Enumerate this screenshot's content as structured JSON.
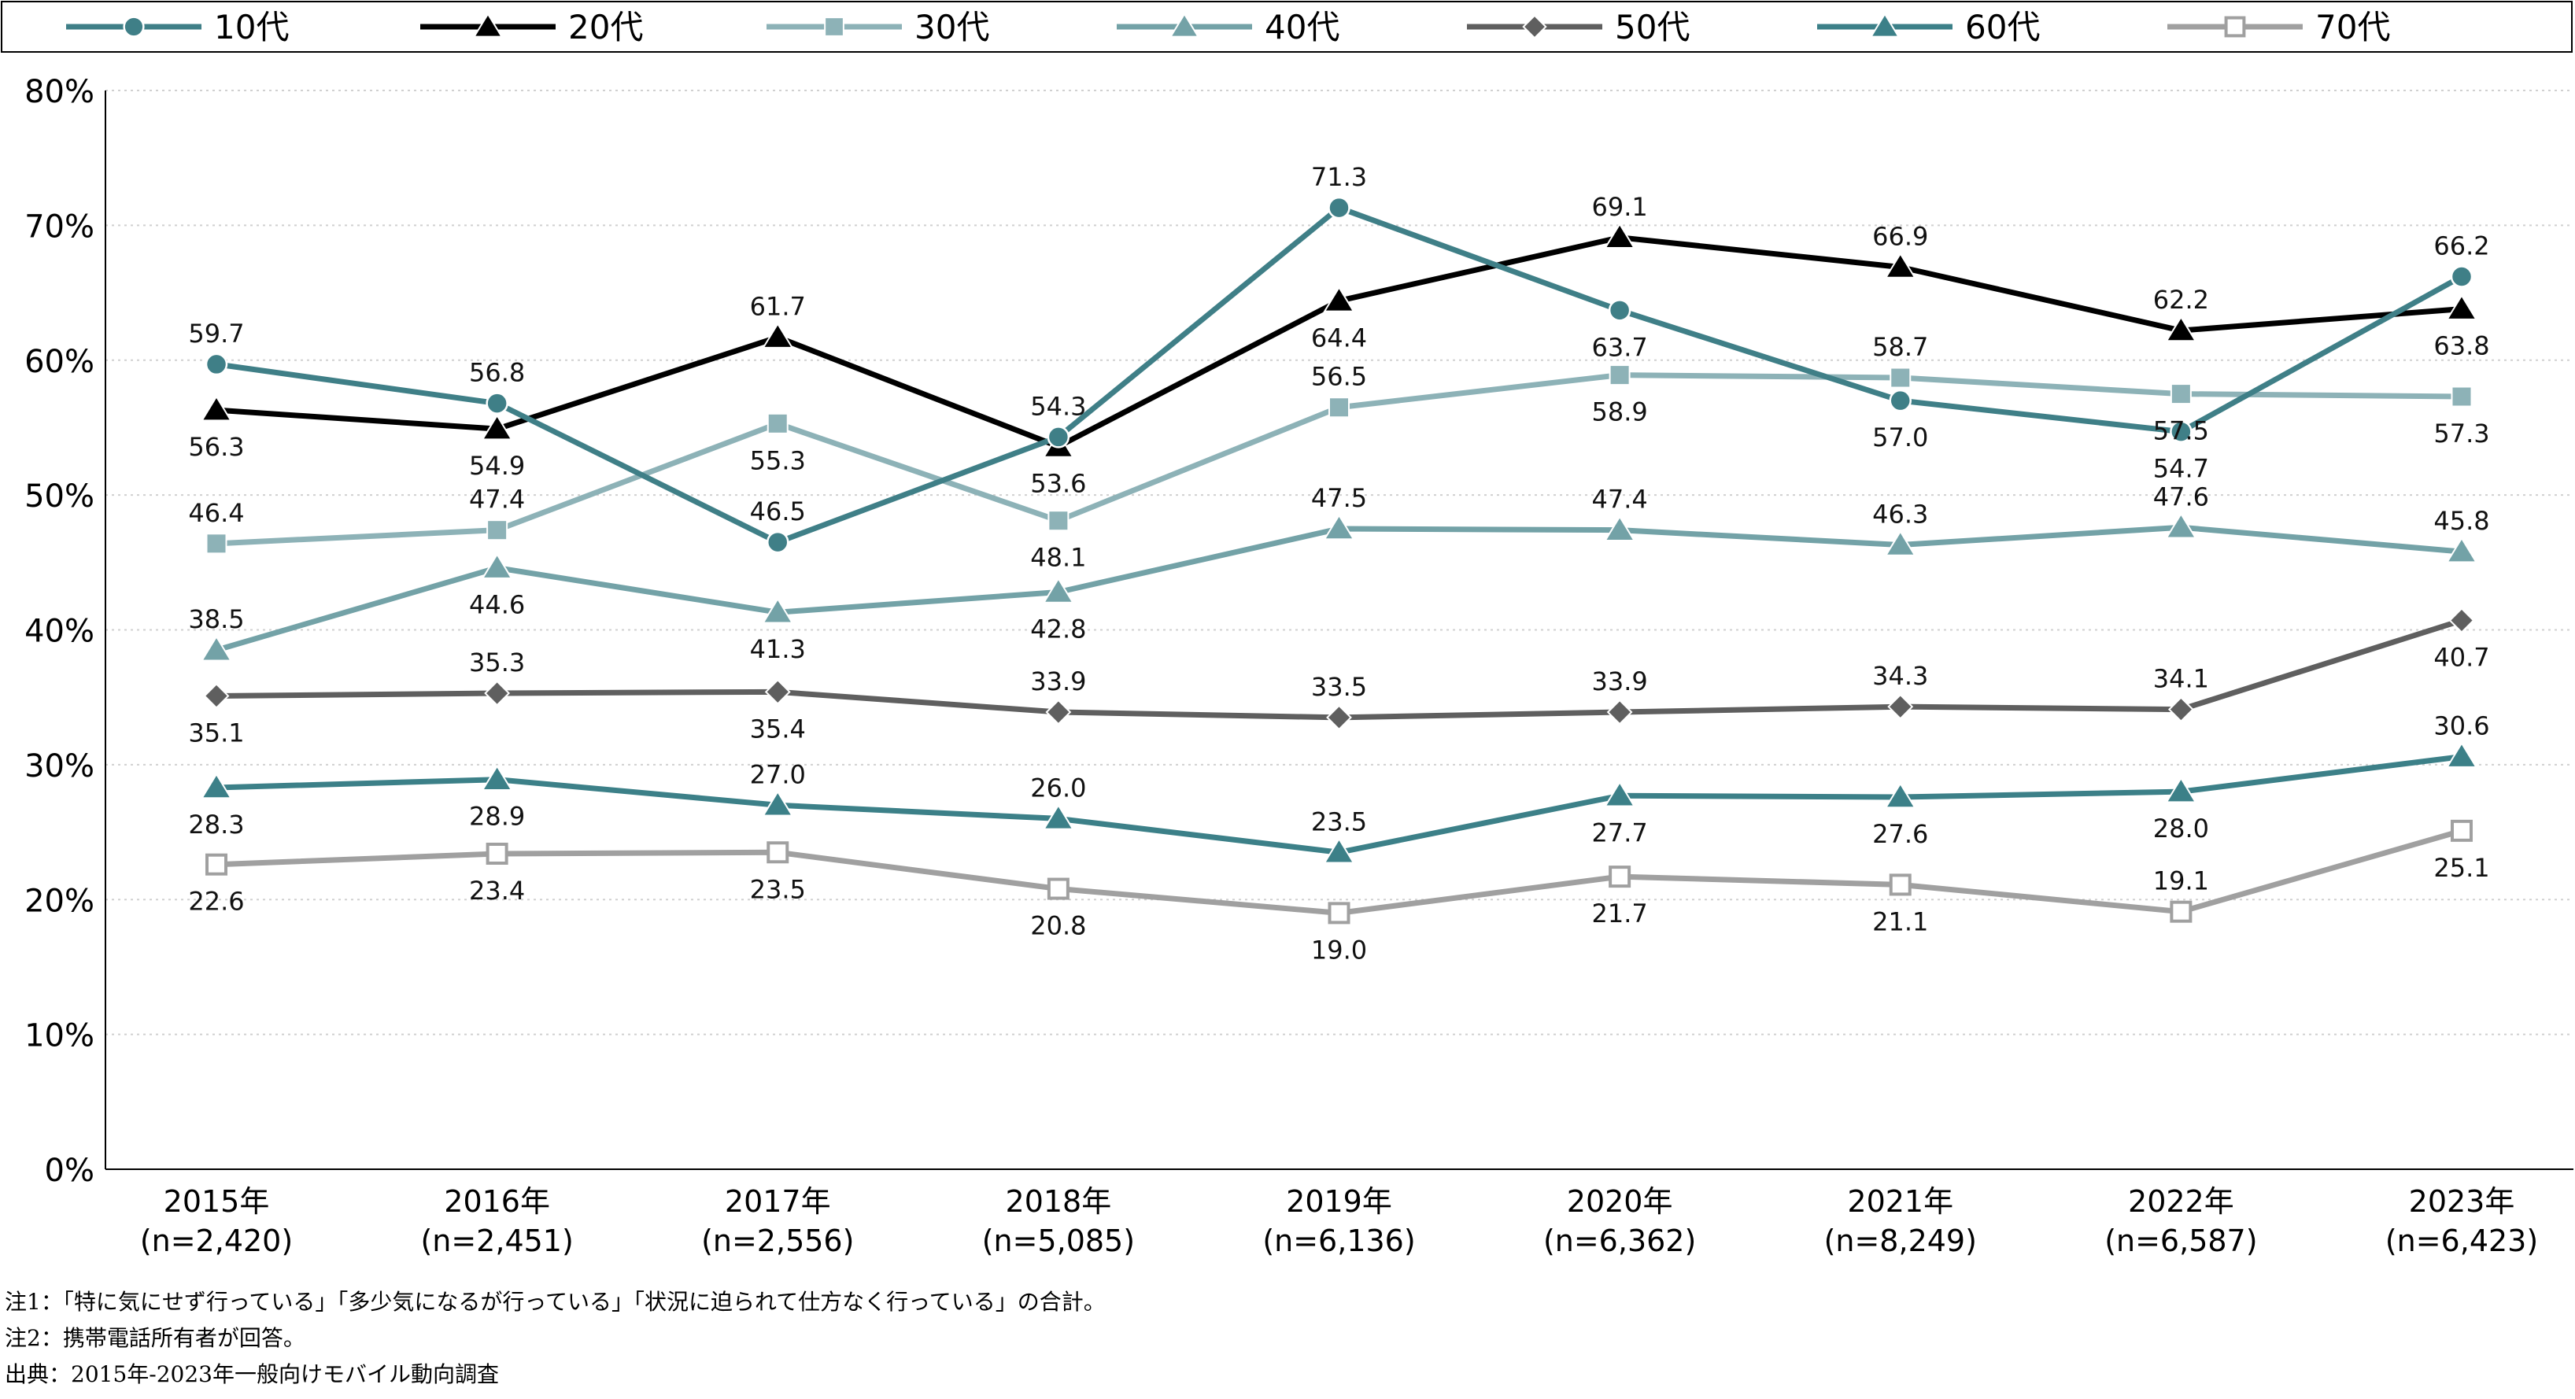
{
  "chart_data": {
    "type": "line",
    "categories": [
      "2015年",
      "2016年",
      "2017年",
      "2018年",
      "2019年",
      "2020年",
      "2021年",
      "2022年",
      "2023年"
    ],
    "sample_sizes": [
      "(n=2,420)",
      "(n=2,451)",
      "(n=2,556)",
      "(n=5,085)",
      "(n=6,136)",
      "(n=6,362)",
      "(n=8,249)",
      "(n=6,587)",
      "(n=6,423)"
    ],
    "ylim": [
      0,
      80
    ],
    "yticks": [
      "0%",
      "10%",
      "20%",
      "30%",
      "40%",
      "50%",
      "60%",
      "70%",
      "80%"
    ],
    "grid": true,
    "legend_position": "top",
    "series": [
      {
        "name": "10代",
        "color": "#3f7f87",
        "marker": "circle",
        "values": [
          59.7,
          56.8,
          46.5,
          54.3,
          71.3,
          63.7,
          57.0,
          54.7,
          66.2
        ],
        "labels": [
          "59.7",
          "56.8",
          "46.5",
          "54.3",
          "71.3",
          "63.7",
          "57.0",
          "54.7",
          "66.2"
        ]
      },
      {
        "name": "20代",
        "color": "#000000",
        "marker": "triangle",
        "values": [
          56.3,
          54.9,
          61.7,
          53.6,
          64.4,
          69.1,
          66.9,
          62.2,
          63.8
        ],
        "labels": [
          "56.3",
          "54.9",
          "61.7",
          "53.6",
          "64.4",
          "69.1",
          "66.9",
          "62.2",
          "63.8"
        ]
      },
      {
        "name": "30代",
        "color": "#8db2b7",
        "marker": "square",
        "values": [
          46.4,
          47.4,
          55.3,
          48.1,
          56.5,
          58.9,
          58.7,
          57.5,
          57.3
        ],
        "labels": [
          "46.4",
          "47.4",
          "55.3",
          "48.1",
          "56.5",
          "58.9",
          "58.7",
          "57.5",
          "57.3"
        ]
      },
      {
        "name": "40代",
        "color": "#73a2a7",
        "marker": "triangle",
        "values": [
          38.5,
          44.6,
          41.3,
          42.8,
          47.5,
          47.4,
          46.3,
          47.6,
          45.8
        ],
        "labels": [
          "38.5",
          "44.6",
          "41.3",
          "42.8",
          "47.5",
          "47.4",
          "46.3",
          "47.6",
          "45.8"
        ]
      },
      {
        "name": "50代",
        "color": "#5f5f5f",
        "marker": "diamond",
        "values": [
          35.1,
          35.3,
          35.4,
          33.9,
          33.5,
          33.9,
          34.3,
          34.1,
          40.7
        ],
        "labels": [
          "35.1",
          "35.3",
          "35.4",
          "33.9",
          "33.5",
          "33.9",
          "34.3",
          "34.1",
          "40.7"
        ]
      },
      {
        "name": "60代",
        "color": "#3c8088",
        "marker": "triangle",
        "values": [
          28.3,
          28.9,
          27.0,
          26.0,
          23.5,
          27.7,
          27.6,
          28.0,
          30.6
        ],
        "labels": [
          "28.3",
          "28.9",
          "27.0",
          "26.0",
          "23.5",
          "27.7",
          "27.6",
          "28.0",
          "30.6"
        ]
      },
      {
        "name": "70代",
        "color": "#a0a0a0",
        "marker": "square-open",
        "values": [
          22.6,
          23.4,
          23.5,
          20.8,
          19.0,
          21.7,
          21.1,
          19.1,
          25.1
        ],
        "labels": [
          "22.6",
          "23.4",
          "23.5",
          "20.8",
          "19.0",
          "21.7",
          "21.1",
          "19.1",
          "25.1"
        ]
      }
    ]
  },
  "notes": {
    "note1": "注1：「特に気にせず行っている」「多少気になるが行っている」「状況に迫られて仕方なく行っている」の合計。",
    "note2": "注2：携帯電話所有者が回答。",
    "source": "出典：2015年-2023年一般向けモバイル動向調査"
  }
}
